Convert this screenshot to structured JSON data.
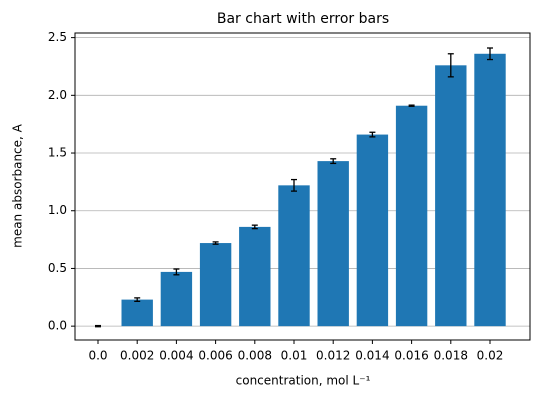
{
  "chart_data": {
    "type": "bar",
    "title": "Bar chart with error bars",
    "x_label": "concentration, mol L⁻¹",
    "y_label": "mean absorbance, A",
    "categories": [
      "0.0",
      "0.002",
      "0.004",
      "0.006",
      "0.008",
      "0.01",
      "0.012",
      "0.014",
      "0.016",
      "0.018",
      "0.02"
    ],
    "values": [
      0.0,
      0.23,
      0.47,
      0.72,
      0.86,
      1.22,
      1.43,
      1.66,
      1.91,
      2.26,
      2.36
    ],
    "errors": [
      0.005,
      0.015,
      0.025,
      0.01,
      0.015,
      0.05,
      0.02,
      0.02,
      0.005,
      0.1,
      0.05
    ],
    "color": "#1f77b4",
    "ylim": [
      -0.12,
      2.54
    ],
    "yticks": [
      {
        "value": 0,
        "label": "0.0"
      },
      0.5,
      {
        "value": 1,
        "label": "1.0"
      },
      1.5,
      {
        "value": 2,
        "label": "2.0"
      },
      2.5
    ],
    "grid": true
  }
}
